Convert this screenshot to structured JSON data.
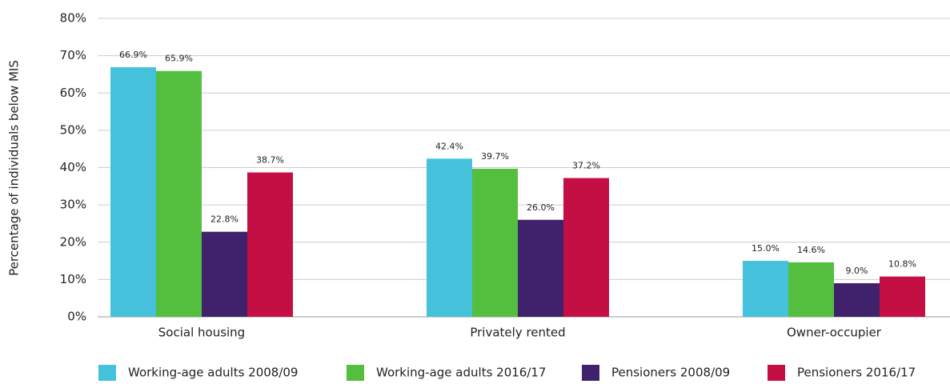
{
  "chart_data": {
    "type": "bar",
    "y_axis_label": "Percentage of individuals below MIS",
    "categories": [
      "Social housing",
      "Privately rented",
      "Owner-occupier"
    ],
    "series": [
      {
        "name": "Working-age adults 2008/09",
        "color": "#45c1dc",
        "values": [
          66.9,
          42.4,
          15.0
        ],
        "value_labels": [
          "66.9%",
          "42.4%",
          "15.0%"
        ]
      },
      {
        "name": "Working-age adults 2016/17",
        "color": "#54bf3e",
        "values": [
          65.9,
          39.7,
          14.6
        ],
        "value_labels": [
          "65.9%",
          "39.7%",
          "14.6%"
        ]
      },
      {
        "name": "Pensioners 2008/09",
        "color": "#40216b",
        "values": [
          22.8,
          26.0,
          9.0
        ],
        "value_labels": [
          "22.8%",
          "26.0%",
          "9.0%"
        ]
      },
      {
        "name": "Pensioners 2016/17",
        "color": "#c40f45",
        "values": [
          38.7,
          37.2,
          10.8
        ],
        "value_labels": [
          "38.7%",
          "37.2%",
          "10.8%"
        ]
      }
    ],
    "ylim": [
      0,
      80
    ],
    "yticks": [
      {
        "value": 0,
        "label": "0%"
      },
      {
        "value": 10,
        "label": "10%"
      },
      {
        "value": 20,
        "label": "20%"
      },
      {
        "value": 30,
        "label": "30%"
      },
      {
        "value": 40,
        "label": "40%"
      },
      {
        "value": 50,
        "label": "50%"
      },
      {
        "value": 60,
        "label": "60%"
      },
      {
        "value": 70,
        "label": "70%"
      },
      {
        "value": 80,
        "label": "80%"
      }
    ],
    "grid": true
  }
}
